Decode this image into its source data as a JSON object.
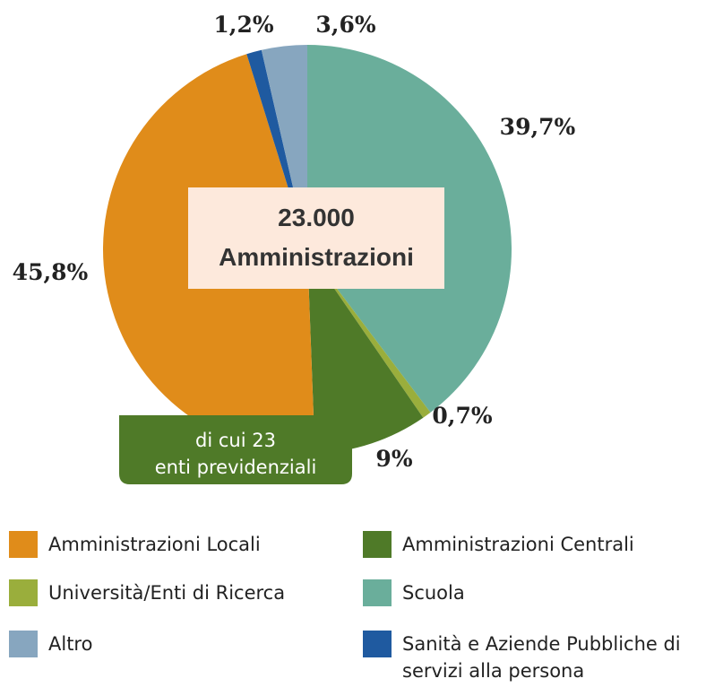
{
  "chart_data": {
    "type": "pie",
    "categories": [
      "Scuola",
      "Università/Enti di Ricerca",
      "Amministrazioni Centrali",
      "Amministrazioni Locali",
      "Sanità e Aziende Pubbliche di servizi alla persona",
      "Altro"
    ],
    "values": [
      39.7,
      0.7,
      9,
      45.8,
      1.2,
      3.6
    ],
    "value_labels": [
      "39,7%",
      "0,7%",
      "9%",
      "45,8%",
      "1,2%",
      "3,6%"
    ],
    "colors": [
      "#6aae9b",
      "#9aae3c",
      "#4f7a28",
      "#e08c1a",
      "#1f5aa0",
      "#87a6bf"
    ],
    "center_label": [
      "23.000",
      "Amministrazioni"
    ],
    "callout": [
      "di cui 23",
      "enti previdenziali"
    ]
  }
}
